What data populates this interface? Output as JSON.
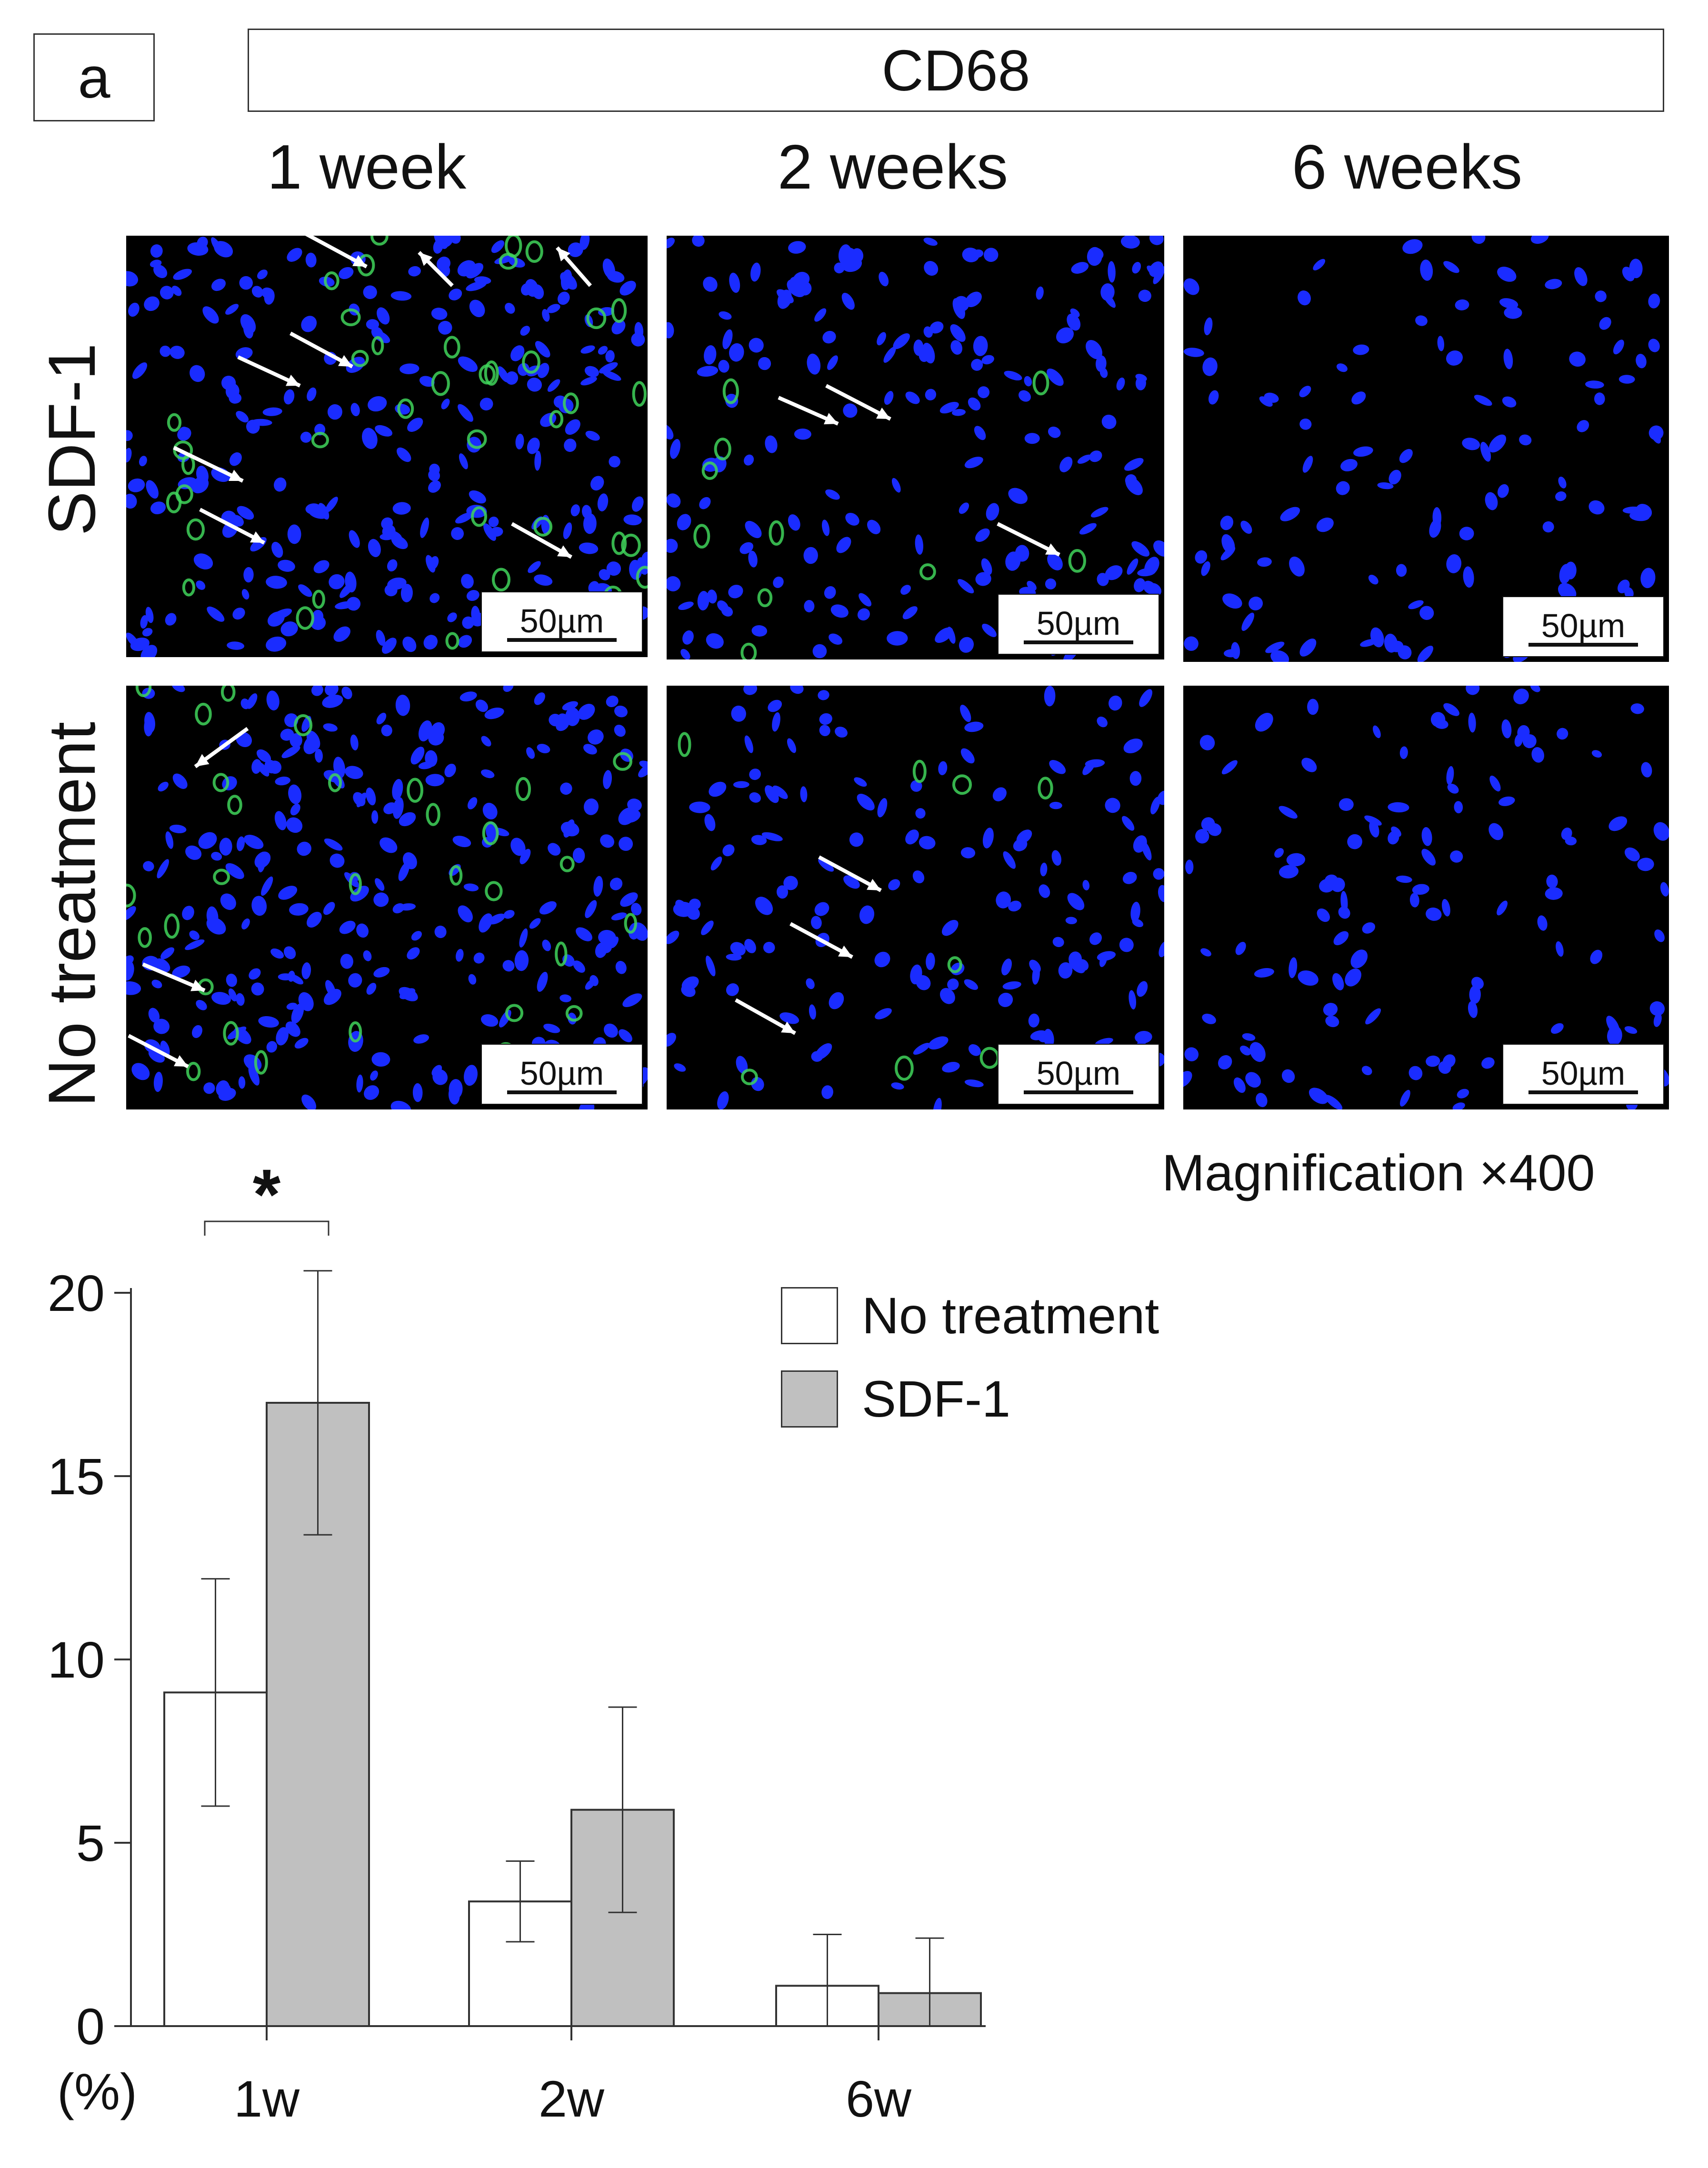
{
  "figure": {
    "panel_label": "a",
    "stain": "CD68",
    "columns": [
      "1 week",
      "2 weeks",
      "6 weeks"
    ],
    "rows": [
      "SDF-1",
      "No treatment"
    ],
    "scale_bar": "50µm",
    "magnification": "Magnification ×400"
  },
  "colors": {
    "nuclei": "#1a2cff",
    "cd68": "#3fd45a",
    "no_treatment": "#ffffff",
    "sdf1": "#c0c0c0"
  },
  "chart_data": {
    "type": "bar",
    "categories": [
      "1w",
      "2w",
      "6w"
    ],
    "series": [
      {
        "name": "No treatment",
        "values": [
          9.1,
          3.4,
          1.1
        ],
        "error": [
          3.1,
          1.1,
          1.4
        ]
      },
      {
        "name": "SDF-1",
        "values": [
          17.0,
          5.9,
          0.9
        ],
        "error": [
          3.6,
          2.8,
          1.5
        ]
      }
    ],
    "ylim": [
      0,
      20
    ],
    "yticks": [
      "0",
      "5",
      "10",
      "15",
      "20"
    ],
    "yunit": "(%)",
    "significance": {
      "category": "1w",
      "label": "*"
    },
    "legend": "top-right",
    "grid": false
  }
}
